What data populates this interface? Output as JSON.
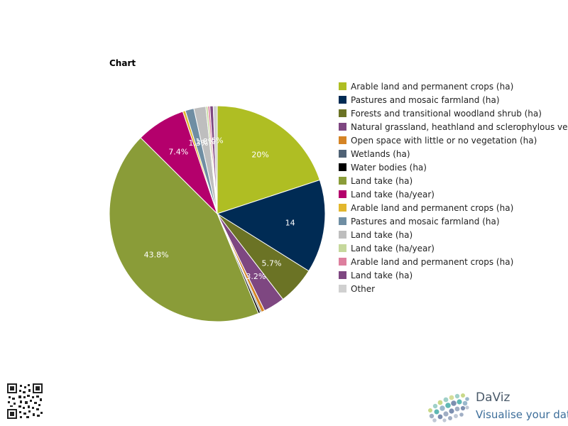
{
  "chart_data": {
    "type": "pie",
    "title": "Chart",
    "slices": [
      {
        "label": "Arable land and permanent crops (ha)",
        "value": 20.0,
        "color": "#afbe23"
      },
      {
        "label": "Pastures and mosaic farmland (ha)",
        "value": 14.0,
        "color": "#002b54"
      },
      {
        "label": "Forests and transitional woodland shrub (ha)",
        "value": 5.7,
        "color": "#6b7325"
      },
      {
        "label": "Natural grassland, heathland and sclerophylous vegetation (ha)",
        "value": 3.2,
        "color": "#7e4781"
      },
      {
        "label": "Open space with little or no vegetation (ha)",
        "value": 0.5,
        "color": "#d58425"
      },
      {
        "label": "Wetlands (ha)",
        "value": 0.2,
        "color": "#4f6275"
      },
      {
        "label": "Water bodies (ha)",
        "value": 0.3,
        "color": "#000000"
      },
      {
        "label": "Land take (ha)",
        "value": 43.8,
        "color": "#8a9c38"
      },
      {
        "label": "Land take (ha/year)",
        "value": 7.4,
        "color": "#b4006c"
      },
      {
        "label": "Arable land and permanent crops (ha)",
        "value": 0.4,
        "color": "#e2b72d"
      },
      {
        "label": "Pastures and mosaic farmland (ha)",
        "value": 1.3,
        "color": "#6f8ea3"
      },
      {
        "label": "Land take (ha)",
        "value": 1.8,
        "color": "#bebebe"
      },
      {
        "label": "Land take (ha/year)",
        "value": 0.3,
        "color": "#c6d89c"
      },
      {
        "label": "Arable land and permanent crops (ha)",
        "value": 0.3,
        "color": "#dd7f9e"
      },
      {
        "label": "Land take (ha)",
        "value": 0.5,
        "color": "#7e4781"
      },
      {
        "label": "Other",
        "value": 0.6,
        "color": "#d0d0d0"
      }
    ],
    "data_labels": [
      {
        "slice": 0,
        "text": "20%"
      },
      {
        "slice": 1,
        "text": "14"
      },
      {
        "slice": 2,
        "text": "5.7%"
      },
      {
        "slice": 3,
        "text": "3.2%"
      },
      {
        "slice": 7,
        "text": "43.8%"
      },
      {
        "slice": 8,
        "text": "7.4%"
      },
      {
        "slice": 10,
        "text": "1.3%"
      },
      {
        "slice": 11,
        "text": "1.8%"
      },
      {
        "slice": 15,
        "text": ".6%"
      }
    ],
    "legend_position": "right"
  },
  "branding": {
    "name": "DaViz",
    "tagline": "Visualise your data"
  }
}
